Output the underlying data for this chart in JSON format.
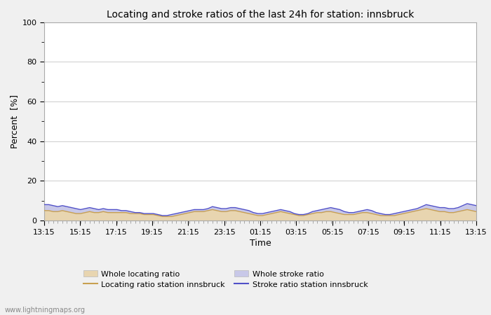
{
  "title": "Locating and stroke ratios of the last 24h for station: innsbruck",
  "xlabel": "Time",
  "ylabel": "Percent  [%]",
  "ylim": [
    0,
    100
  ],
  "yticks": [
    0,
    20,
    40,
    60,
    80,
    100
  ],
  "x_labels": [
    "13:15",
    "15:15",
    "17:15",
    "19:15",
    "21:15",
    "23:15",
    "01:15",
    "03:15",
    "05:15",
    "07:15",
    "09:15",
    "11:15",
    "13:15"
  ],
  "background_color": "#f0f0f0",
  "plot_bg_color": "#ffffff",
  "grid_color": "#cccccc",
  "watermark": "www.lightningmaps.org",
  "whole_locating_color": "#e8d5b0",
  "whole_stroke_color": "#c8c8e8",
  "locating_line_color": "#c8a050",
  "stroke_line_color": "#5050c8",
  "legend_locating_patch": "Whole locating ratio",
  "legend_stroke_patch": "Whole stroke ratio",
  "legend_locating_line": "Locating ratio station innsbruck",
  "legend_stroke_line": "Stroke ratio station innsbruck",
  "whole_locating_ratio": [
    5,
    5,
    4.5,
    4.5,
    5,
    4.5,
    4,
    3.5,
    3.5,
    4,
    4.5,
    4,
    4,
    4.5,
    4,
    4,
    4,
    4,
    4,
    3.5,
    3.5,
    3.5,
    3,
    3,
    3,
    2.5,
    2,
    2,
    2,
    2.5,
    3,
    3.5,
    4,
    4.5,
    4.5,
    4.5,
    5,
    5.5,
    5,
    4.5,
    4.5,
    5,
    5,
    4.5,
    4,
    3.5,
    3,
    2.5,
    2.5,
    3,
    3.5,
    4,
    4.5,
    4,
    3.5,
    3,
    2.5,
    2.5,
    3,
    3.5,
    4,
    4,
    4.5,
    4.5,
    4,
    3.5,
    3,
    3,
    3,
    3.5,
    4,
    4,
    3.5,
    3,
    2.5,
    2.5,
    2.5,
    2.5,
    3,
    3.5,
    4,
    4.5,
    5,
    5.5,
    6,
    5.5,
    5,
    4.5,
    4.5,
    4,
    4,
    4.5,
    5,
    5.5,
    5,
    4.5
  ],
  "whole_stroke_ratio": [
    8,
    8,
    7.5,
    7,
    7.5,
    7,
    6.5,
    6,
    5.5,
    6,
    6.5,
    6,
    5.5,
    6,
    5.5,
    5.5,
    5.5,
    5,
    5,
    4.5,
    4,
    4,
    3.5,
    3.5,
    3.5,
    3,
    2.5,
    2.5,
    3,
    3.5,
    4,
    4.5,
    5,
    5.5,
    5.5,
    5.5,
    6,
    7,
    6.5,
    6,
    6,
    6.5,
    6.5,
    6,
    5.5,
    5,
    4,
    3.5,
    3.5,
    4,
    4.5,
    5,
    5.5,
    5,
    4.5,
    3.5,
    3,
    3,
    3.5,
    4.5,
    5,
    5.5,
    6,
    6.5,
    6,
    5.5,
    4.5,
    4,
    4,
    4.5,
    5,
    5.5,
    5,
    4,
    3.5,
    3,
    3,
    3.5,
    4,
    4.5,
    5,
    5.5,
    6,
    7,
    8,
    7.5,
    7,
    6.5,
    6.5,
    6,
    6,
    6.5,
    7.5,
    8.5,
    8,
    7.5
  ],
  "locating_line": [
    5,
    5,
    4.5,
    4.5,
    5,
    4.5,
    4,
    3.5,
    3.5,
    4,
    4.5,
    4,
    4,
    4.5,
    4,
    4,
    4,
    4,
    4,
    3.5,
    3.5,
    3.5,
    3,
    3,
    3,
    2.5,
    2,
    2,
    2,
    2.5,
    3,
    3.5,
    4,
    4.5,
    4.5,
    4.5,
    5,
    5.5,
    5,
    4.5,
    4.5,
    5,
    5,
    4.5,
    4,
    3.5,
    3,
    2.5,
    2.5,
    3,
    3.5,
    4,
    4.5,
    4,
    3.5,
    3,
    2.5,
    2.5,
    3,
    3.5,
    4,
    4,
    4.5,
    4.5,
    4,
    3.5,
    3,
    3,
    3,
    3.5,
    4,
    4,
    3.5,
    3,
    2.5,
    2.5,
    2.5,
    2.5,
    3,
    3.5,
    4,
    4.5,
    5,
    5.5,
    6,
    5.5,
    5,
    4.5,
    4.5,
    4,
    4,
    4.5,
    5,
    5.5,
    5,
    4.5
  ],
  "stroke_line": [
    8,
    8,
    7.5,
    7,
    7.5,
    7,
    6.5,
    6,
    5.5,
    6,
    6.5,
    6,
    5.5,
    6,
    5.5,
    5.5,
    5.5,
    5,
    5,
    4.5,
    4,
    4,
    3.5,
    3.5,
    3.5,
    3,
    2.5,
    2.5,
    3,
    3.5,
    4,
    4.5,
    5,
    5.5,
    5.5,
    5.5,
    6,
    7,
    6.5,
    6,
    6,
    6.5,
    6.5,
    6,
    5.5,
    5,
    4,
    3.5,
    3.5,
    4,
    4.5,
    5,
    5.5,
    5,
    4.5,
    3.5,
    3,
    3,
    3.5,
    4.5,
    5,
    5.5,
    6,
    6.5,
    6,
    5.5,
    4.5,
    4,
    4,
    4.5,
    5,
    5.5,
    5,
    4,
    3.5,
    3,
    3,
    3.5,
    4,
    4.5,
    5,
    5.5,
    6,
    7,
    8,
    7.5,
    7,
    6.5,
    6.5,
    6,
    6,
    6.5,
    7.5,
    8.5,
    8,
    7.5
  ]
}
